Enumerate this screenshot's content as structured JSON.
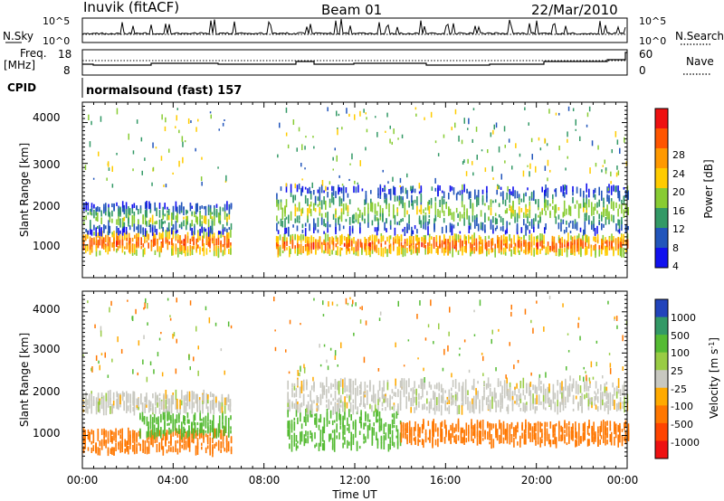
{
  "header": {
    "station": "Inuvik (fitACF)",
    "beam": "Beam 01",
    "date": "22/Mar/2010"
  },
  "params": {
    "left_top_label": "N.Sky",
    "left_top_ticks": [
      "10^5",
      "10^0"
    ],
    "right_top_ticks": [
      "10^5",
      "10^0"
    ],
    "right_top_label": "N.Search",
    "freq_label": "Freq.",
    "freq_unit": "[MHz]",
    "freq_ticks": [
      "18",
      "8"
    ],
    "nave_ticks": [
      "60",
      "0"
    ],
    "nave_label": "Nave",
    "cpid_label": "CPID",
    "cpid_value": "normalsound (fast) 157"
  },
  "axes": {
    "ylabel": "Slant Range [km]",
    "xlabel": "Time UT",
    "yticks": [
      "4000",
      "3000",
      "2000",
      "1000"
    ],
    "xticks": [
      "00:00",
      "04:00",
      "08:00",
      "12:00",
      "16:00",
      "20:00",
      "00:00"
    ]
  },
  "power_bar": {
    "label": "Power [dB]",
    "ticks": [
      "28",
      "24",
      "20",
      "16",
      "12",
      "8",
      "4"
    ],
    "colors": [
      "#ee1111",
      "#ff5500",
      "#ff9900",
      "#ffcc00",
      "#88cc33",
      "#339966",
      "#2255bb",
      "#1111ee"
    ]
  },
  "velocity_bar": {
    "label": "Velocity [m s",
    "label_sup": "-1",
    "label_end": "]",
    "ticks": [
      "1000",
      "500",
      "100",
      "25",
      "-25",
      "-100",
      "-500",
      "-1000"
    ],
    "colors": [
      "#2244bb",
      "#339966",
      "#55bb33",
      "#99cc44",
      "#c8c8c0",
      "#ffaa00",
      "#ff7700",
      "#ff4400",
      "#ee1111"
    ]
  },
  "chart_data": [
    {
      "type": "heatmap",
      "panel": "power",
      "x": [
        "00:00",
        "04:00",
        "08:00",
        "12:00",
        "16:00",
        "20:00",
        "00:00"
      ],
      "xlabel": "Time UT",
      "ylabel": "Slant Range [km]",
      "ylim": [
        200,
        4500
      ],
      "clabel": "Power [dB]",
      "cticks": [
        4,
        8,
        12,
        16,
        20,
        24,
        28
      ],
      "bands": [
        {
          "hours": [
            0,
            6.5
          ],
          "range_km": [
            800,
            1300
          ],
          "power_db": 28
        },
        {
          "hours": [
            0,
            6.5
          ],
          "range_km": [
            1300,
            2000
          ],
          "power_db": 16
        },
        {
          "hours": [
            8.5,
            24
          ],
          "range_km": [
            800,
            1200
          ],
          "power_db": 28
        },
        {
          "hours": [
            8.5,
            24
          ],
          "range_km": [
            1300,
            2400
          ],
          "power_db": 16
        }
      ]
    },
    {
      "type": "heatmap",
      "panel": "velocity",
      "x": [
        "00:00",
        "04:00",
        "08:00",
        "12:00",
        "16:00",
        "20:00",
        "00:00"
      ],
      "xlabel": "Time UT",
      "ylabel": "Slant Range [km]",
      "ylim": [
        200,
        4500
      ],
      "clabel": "Velocity [m s-1]",
      "cticks": [
        -1000,
        -500,
        -100,
        -25,
        25,
        100,
        500,
        1000
      ],
      "bands": [
        {
          "hours": [
            0,
            6.5
          ],
          "range_km": [
            600,
            1100
          ],
          "velocity": -300
        },
        {
          "hours": [
            2.5,
            6.5
          ],
          "range_km": [
            1000,
            1500
          ],
          "velocity": 300
        },
        {
          "hours": [
            0,
            6.5
          ],
          "range_km": [
            1600,
            2000
          ],
          "velocity": 0
        },
        {
          "hours": [
            9,
            14
          ],
          "range_km": [
            700,
            1600
          ],
          "velocity": 300
        },
        {
          "hours": [
            14,
            24
          ],
          "range_km": [
            800,
            1300
          ],
          "velocity": -300
        },
        {
          "hours": [
            9,
            24
          ],
          "range_km": [
            1600,
            2300
          ],
          "velocity": 0
        }
      ]
    }
  ]
}
